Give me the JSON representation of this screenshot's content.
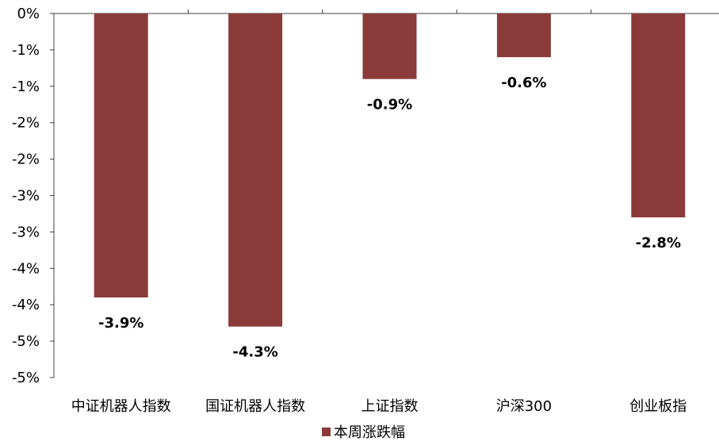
{
  "chart_data": {
    "type": "bar",
    "title": "",
    "xlabel": "",
    "ylabel": "",
    "categories": [
      "中证机器人指数",
      "国证机器人指数",
      "上证指数",
      "沪深300",
      "创业板指"
    ],
    "series": [
      {
        "name": "本周涨跌幅",
        "color": "#8B3A3A",
        "values": [
          -3.9,
          -4.3,
          -0.9,
          -0.6,
          -2.8
        ],
        "data_labels": [
          "-3.9%",
          "-4.3%",
          "-0.9%",
          "-0.6%",
          "-2.8%"
        ]
      }
    ],
    "ylim": [
      -5,
      0
    ],
    "y_ticks": [
      0,
      -0.5,
      -1,
      -1.5,
      -2,
      -2.5,
      -3,
      -3.5,
      -4,
      -4.5,
      -5
    ],
    "y_tick_labels": [
      "0%",
      "-1%",
      "-1%",
      "-2%",
      "-2%",
      "-3%",
      "-3%",
      "-4%",
      "-4%",
      "-5%",
      "-5%"
    ],
    "grid": false,
    "legend": {
      "position": "bottom-center",
      "label": "本周涨跌幅"
    }
  }
}
